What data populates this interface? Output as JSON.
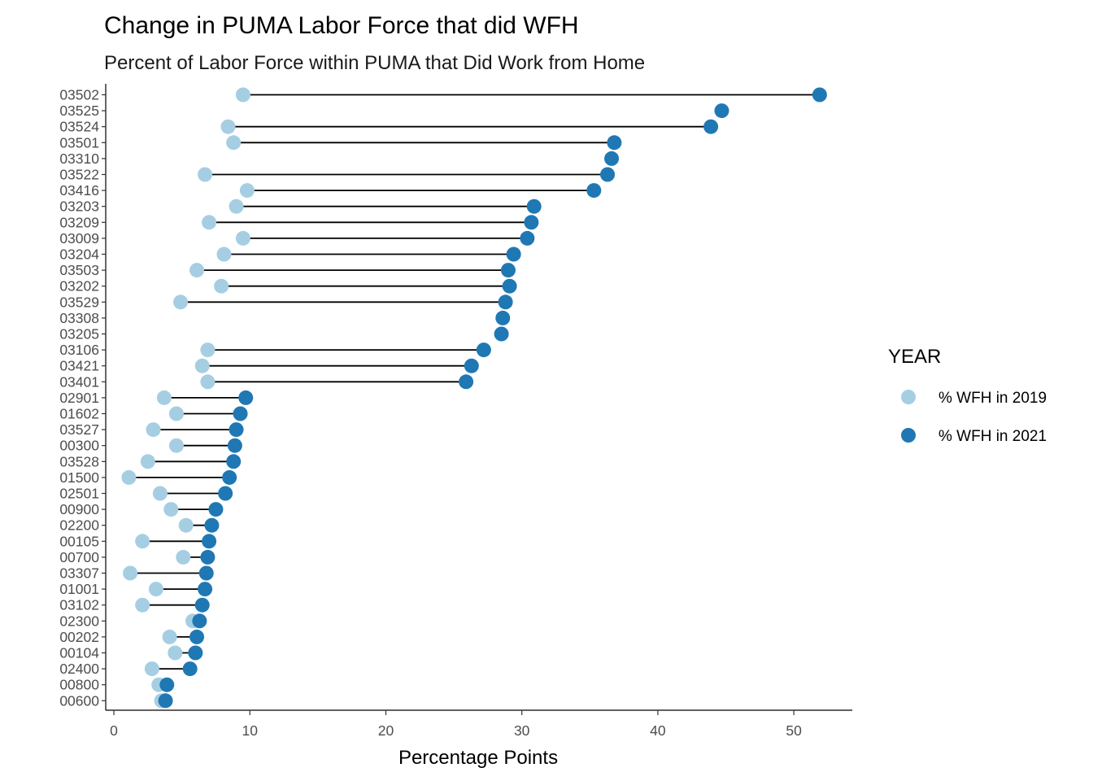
{
  "chart_data": {
    "type": "dumbbell",
    "title": "Change in PUMA Labor Force that did WFH",
    "subtitle": "Percent of Labor Force within PUMA that Did Work from Home",
    "xlabel": "Percentage Points",
    "ylabel": "",
    "xlim": [
      -0.6,
      54.3
    ],
    "xticks": [
      "0",
      "10",
      "20",
      "30",
      "40",
      "50"
    ],
    "grid": false,
    "legend": {
      "title": "YEAR",
      "position": "right",
      "entries": [
        "% WFH in 2019",
        "% WFH in 2021"
      ]
    },
    "colors": {
      "y2019": "#a6cee3",
      "y2021": "#1f78b4",
      "segment": "#000000"
    },
    "categories": [
      "03502",
      "03525",
      "03524",
      "03501",
      "03310",
      "03522",
      "03416",
      "03203",
      "03209",
      "03009",
      "03204",
      "03503",
      "03202",
      "03529",
      "03308",
      "03205",
      "03106",
      "03421",
      "03401",
      "02901",
      "01602",
      "03527",
      "00300",
      "03528",
      "01500",
      "02501",
      "00900",
      "02200",
      "00105",
      "00700",
      "03307",
      "01001",
      "03102",
      "02300",
      "00202",
      "00104",
      "02400",
      "00800",
      "00600"
    ],
    "series": [
      {
        "name": "% WFH in 2019",
        "values": [
          9.5,
          null,
          8.4,
          8.8,
          null,
          6.7,
          9.8,
          9.0,
          7.0,
          9.5,
          8.1,
          6.1,
          7.9,
          4.9,
          null,
          null,
          6.9,
          6.5,
          6.9,
          3.7,
          4.6,
          2.9,
          4.6,
          2.5,
          1.1,
          3.4,
          4.2,
          5.3,
          2.1,
          5.1,
          1.2,
          3.1,
          2.1,
          5.8,
          4.1,
          4.5,
          2.8,
          3.3,
          3.5
        ]
      },
      {
        "name": "% WFH in 2021",
        "values": [
          51.9,
          44.7,
          43.9,
          36.8,
          36.6,
          36.3,
          35.3,
          30.9,
          30.7,
          30.4,
          29.4,
          29.0,
          29.1,
          28.8,
          28.6,
          28.5,
          27.2,
          26.3,
          25.9,
          9.7,
          9.3,
          9.0,
          8.9,
          8.8,
          8.5,
          8.2,
          7.5,
          7.2,
          7.0,
          6.9,
          6.8,
          6.7,
          6.5,
          6.3,
          6.1,
          6.0,
          5.6,
          3.9,
          3.8
        ]
      }
    ]
  }
}
